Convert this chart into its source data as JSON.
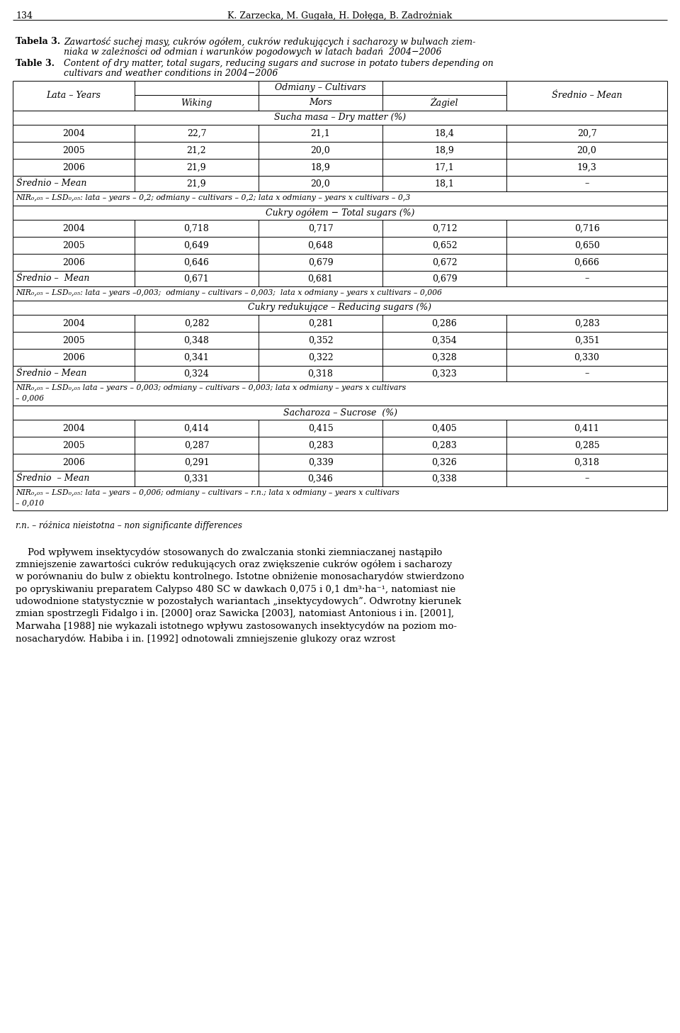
{
  "page_number": "134",
  "authors": "K. Zarzecka, M. Gugała, H. Dołęga, B. Zadrożniak",
  "tabela_label": "Tabela 3.",
  "tabela_pl_line1": "Zawartość suchej masy, cukrów ogółem, cukrów redukujących i sacharozy w bulwach ziem-",
  "tabela_pl_line2": "niaka w zależności od odmian i warunków pogodowych w latach badań  2004−2006",
  "table_label": "Table 3.",
  "table_en_line1": "Content of dry matter, total sugars, reducing sugars and sucrose in potato tubers depending on",
  "table_en_line2": "cultivars and weather conditions in 2004−2006",
  "header_col0": "Lata – Years",
  "header_cultivars": "Odmiany – Cultivars",
  "header_wiking": "Wiking",
  "header_mors": "Mors",
  "header_zagiel": "Żagiel",
  "header_srednie": "Średnio – Mean",
  "section1_header": "Sucha masa – Dry matter (%)",
  "section1_rows": [
    [
      "2004",
      "22,7",
      "21,1",
      "18,4",
      "20,7"
    ],
    [
      "2005",
      "21,2",
      "20,0",
      "18,9",
      "20,0"
    ],
    [
      "2006",
      "21,9",
      "18,9",
      "17,1",
      "19,3"
    ]
  ],
  "section1_mean": [
    "Średnio – Mean",
    "21,9",
    "20,0",
    "18,1",
    "–"
  ],
  "section1_nir": "NIR₀,₀₅ – LSD₀,₀₅: lata – years – 0,2; odmiany – cultivars – 0,2; lata x odmiany – years x cultivars – 0,3",
  "section1_nir_lines": 1,
  "section2_header": "Cukry ogółem − Total sugars (%)",
  "section2_rows": [
    [
      "2004",
      "0,718",
      "0,717",
      "0,712",
      "0,716"
    ],
    [
      "2005",
      "0,649",
      "0,648",
      "0,652",
      "0,650"
    ],
    [
      "2006",
      "0,646",
      "0,679",
      "0,672",
      "0,666"
    ]
  ],
  "section2_mean": [
    "Średnio –  Mean",
    "0,671",
    "0,681",
    "0,679",
    "–"
  ],
  "section2_nir": "NIR₀,₀₅ – LSD₀,₀₅: lata – years –0,003;  odmiany – cultivars – 0,003;  lata x odmiany – years x cultivars – 0,006",
  "section2_nir_lines": 1,
  "section3_header": "Cukry redukujące – Reducing sugars (%)",
  "section3_rows": [
    [
      "2004",
      "0,282",
      "0,281",
      "0,286",
      "0,283"
    ],
    [
      "2005",
      "0,348",
      "0,352",
      "0,354",
      "0,351"
    ],
    [
      "2006",
      "0,341",
      "0,322",
      "0,328",
      "0,330"
    ]
  ],
  "section3_mean": [
    "Średnio – Mean",
    "0,324",
    "0,318",
    "0,323",
    "–"
  ],
  "section3_nir_line1": "NIR₀,₀₅ – LSD₀,₀₅ lata – years – 0,003; odmiany – cultivars – 0,003; lata x odmiany – years x cultivars",
  "section3_nir_line2": "– 0,006",
  "section3_nir_lines": 2,
  "section4_header": "Sacharoza – Sucrose  (%)",
  "section4_rows": [
    [
      "2004",
      "0,414",
      "0,415",
      "0,405",
      "0,411"
    ],
    [
      "2005",
      "0,287",
      "0,283",
      "0,283",
      "0,285"
    ],
    [
      "2006",
      "0,291",
      "0,339",
      "0,326",
      "0,318"
    ]
  ],
  "section4_mean": [
    "Średnio  – Mean",
    "0,331",
    "0,346",
    "0,338",
    "–"
  ],
  "section4_nir_line1": "NIR₀,₀₅ – LSD₀,₀₅: lata – years – 0,006; odmiany – cultivars – r.n.; lata x odmiany – years x cultivars",
  "section4_nir_line2": "– 0,010",
  "section4_nir_lines": 2,
  "footnote": "r.n. – różnica nieistotna – non significante differences",
  "para_lines": [
    "    Pod wpływem insektycydów stosowanych do zwalczania stonki ziemniaczanej nastąpiło",
    "zmniejszenie zawartości cukrów redukujących oraz zwiększenie cukrów ogółem i sacharozy",
    "w porównaniu do bulw z obiektu kontrolnego. Istotne obniżenie monosacharydów stwierdzono",
    "po opryskiwaniu preparatem Calypso 480 SC w dawkach 0,075 i 0,1 dm³·ha⁻¹, natomiast nie",
    "udowodnione statystycznie w pozostałych wariantach „insektycydowych”. Odwrotny kierunek",
    "zmian spostrzegli Fidalgo i in. [2000] oraz Sawicka [2003], natomiast Antonious i in. [2001],",
    "Marwaha [1988] nie wykazali istotnego wpływu zastosowanych insektycydów na poziom mo-",
    "nosacharydów. Habiba i in. [1992] odnotowali zmniejszenie glukozy oraz wzrost"
  ]
}
